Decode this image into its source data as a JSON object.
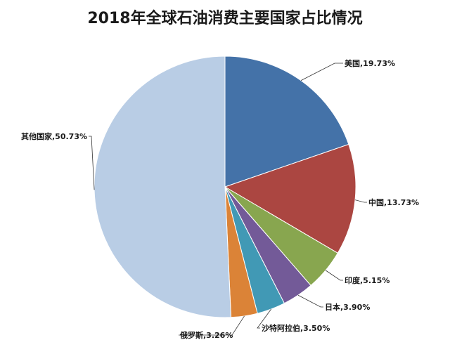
{
  "chart_data": {
    "type": "pie",
    "title": "2018年全球石油消费主要国家占比情况",
    "slices": [
      {
        "label": "美国,19.73%",
        "value": 19.73,
        "color": "#4472a8"
      },
      {
        "label": "中国,13.73%",
        "value": 13.73,
        "color": "#ab4641"
      },
      {
        "label": "印度,5.15%",
        "value": 5.15,
        "color": "#88a64f"
      },
      {
        "label": "日本,3.90%",
        "value": 3.9,
        "color": "#735a98"
      },
      {
        "label": "沙特阿拉伯,3.50%",
        "value": 3.5,
        "color": "#4199b5"
      },
      {
        "label": "俄罗斯,3.26%",
        "value": 3.26,
        "color": "#db8337"
      },
      {
        "label": "其他国家,50.73%",
        "value": 50.73,
        "color": "#b9cde5"
      }
    ],
    "start_angle": "12 o'clock",
    "direction": "clockwise",
    "legend": "none"
  }
}
